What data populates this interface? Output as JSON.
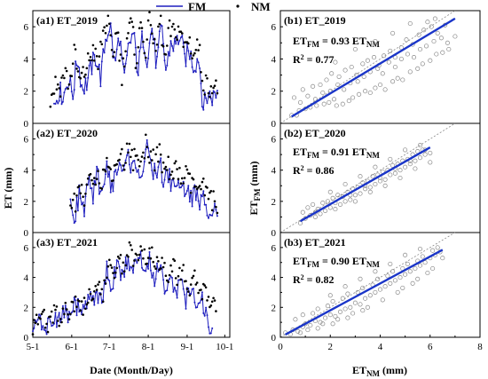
{
  "legend": {
    "fm_label": "FM",
    "nm_label": "NM"
  },
  "colors": {
    "fm_line": "#1f1fbf",
    "nm_dot": "#000000",
    "fit_line": "#1a35c8",
    "scatter_marker": "#8a8a8a",
    "one_to_one": "#888888"
  },
  "left_panels": {
    "y_axis_title": "ET (mm)",
    "x_axis_title": "Date (Month/Day)",
    "x_tick_labels": [
      "5-1",
      "6-1",
      "7-1",
      "8-1",
      "9-1",
      "10-1"
    ],
    "y_tick_labels": [
      "0",
      "2",
      "4",
      "6"
    ]
  },
  "right_panels": {
    "y_axis_title": "ET",
    "y_axis_sub": "FM",
    "y_axis_unit": " (mm)",
    "x_axis_title": "ET",
    "x_axis_sub": "NM",
    "x_axis_unit": " (mm)",
    "x_tick_labels": [
      "0",
      "2",
      "4",
      "6",
      "8"
    ],
    "y_tick_labels": [
      "0",
      "2",
      "4",
      "6"
    ]
  },
  "chart_data": [
    {
      "type": "line",
      "title": "(a1) ET_2019",
      "xlabel": "Date (Month/Day)",
      "ylabel": "ET (mm)",
      "ylim": [
        0,
        7
      ],
      "series": [
        {
          "name": "FM",
          "style": "line",
          "start_date": "05-18",
          "end_date": "09-25",
          "anchors": [
            1.2,
            2.0,
            1.7,
            2.8,
            1.8,
            4.2,
            2.2,
            2.5,
            3.5,
            4.2,
            2.8,
            5.2,
            6.2,
            3.5,
            5.5,
            2.5,
            4.8,
            5.6,
            3.2,
            5.5,
            4.0,
            6.0,
            3.5,
            6.0,
            3.2,
            5.0,
            4.8,
            5.5,
            4.0,
            4.5,
            3.5,
            4.2,
            1.0,
            1.8,
            1.6,
            2.0
          ]
        },
        {
          "name": "NM",
          "style": "dots",
          "start_date": "05-15",
          "end_date": "09-25",
          "anchors": [
            1.5,
            2.5,
            2.2,
            3.3,
            2.3,
            4.5,
            2.6,
            3.0,
            3.9,
            4.6,
            3.5,
            5.6,
            6.4,
            4.0,
            6.0,
            3.0,
            5.3,
            6.2,
            3.8,
            6.2,
            4.5,
            6.8,
            4.1,
            6.6,
            3.8,
            5.8,
            5.5,
            6.0,
            4.7,
            5.3,
            4.2,
            5.0,
            2.6,
            2.3,
            2.4,
            2.0
          ]
        }
      ]
    },
    {
      "type": "line",
      "title": "(a2) ET_2020",
      "xlabel": "Date (Month/Day)",
      "ylabel": "ET (mm)",
      "ylim": [
        0,
        7
      ],
      "series": [
        {
          "name": "FM",
          "style": "line",
          "start_date": "05-31",
          "end_date": "09-25",
          "anchors": [
            1.8,
            1.2,
            2.5,
            1.5,
            3.2,
            2.0,
            3.8,
            2.5,
            4.2,
            3.0,
            3.5,
            4.5,
            3.8,
            5.0,
            4.0,
            4.5,
            3.5,
            5.5,
            4.2,
            3.8,
            4.5,
            3.2,
            3.8,
            2.8,
            3.5,
            2.5,
            3.0,
            2.2,
            2.5,
            1.8,
            2.2,
            1.5,
            1.8,
            1.5
          ]
        },
        {
          "name": "NM",
          "style": "dots",
          "start_date": "05-31",
          "end_date": "09-25",
          "anchors": [
            2.2,
            1.8,
            3.0,
            2.2,
            3.6,
            2.6,
            4.2,
            3.2,
            4.6,
            3.7,
            4.1,
            5.1,
            4.5,
            5.6,
            4.6,
            5.1,
            4.2,
            6.0,
            4.9,
            4.6,
            5.0,
            3.9,
            4.3,
            3.6,
            4.1,
            3.3,
            3.7,
            3.0,
            3.1,
            2.6,
            2.8,
            2.2,
            2.1,
            1.8
          ]
        }
      ]
    },
    {
      "type": "line",
      "title": "(a3) ET_2021",
      "xlabel": "Date (Month/Day)",
      "ylabel": "ET (mm)",
      "ylim": [
        0,
        7
      ],
      "series": [
        {
          "name": "FM",
          "style": "line",
          "start_date": "05-01",
          "end_date": "09-21",
          "anchors": [
            0.3,
            0.8,
            1.2,
            0.6,
            1.5,
            1.0,
            1.8,
            1.3,
            2.2,
            1.6,
            2.0,
            2.5,
            3.0,
            2.2,
            4.5,
            3.2,
            5.0,
            3.8,
            5.5,
            4.2,
            5.8,
            4.5,
            5.2,
            4.0,
            4.8,
            3.5,
            4.2,
            3.0,
            3.8,
            2.5,
            3.2,
            2.0,
            2.5,
            1.2,
            0.5
          ]
        },
        {
          "name": "NM",
          "style": "dots",
          "start_date": "05-01",
          "end_date": "09-24",
          "anchors": [
            0.5,
            1.0,
            1.5,
            0.9,
            1.8,
            1.3,
            2.1,
            1.7,
            2.6,
            2.0,
            2.5,
            3.0,
            3.6,
            2.8,
            5.0,
            3.8,
            5.5,
            4.4,
            6.0,
            4.9,
            6.2,
            5.2,
            5.8,
            4.7,
            5.4,
            4.2,
            4.9,
            3.8,
            4.5,
            3.3,
            4.0,
            2.9,
            3.2,
            2.2,
            2.0
          ]
        }
      ]
    },
    {
      "type": "scatter",
      "title": "(b1) ET_2019",
      "equation": {
        "lhs": "ET",
        "lhs_sub": "FM",
        "mid": " = 0.93 ET",
        "rhs_sub": "NM"
      },
      "r2": {
        "label": "R",
        "sup": "2",
        "value": " = 0.77"
      },
      "slope": 0.93,
      "xlim": [
        0,
        8
      ],
      "ylim": [
        0,
        7
      ],
      "points": [
        [
          0.45,
          0.5
        ],
        [
          0.65,
          0.5
        ],
        [
          0.8,
          1.3
        ],
        [
          1.0,
          0.9
        ],
        [
          1.2,
          1.0
        ],
        [
          1.45,
          1.1
        ],
        [
          1.75,
          1.2
        ],
        [
          1.95,
          1.3
        ],
        [
          2.15,
          1.5
        ],
        [
          2.25,
          1.1
        ],
        [
          2.5,
          1.2
        ],
        [
          2.75,
          1.4
        ],
        [
          2.9,
          1.6
        ],
        [
          3.15,
          1.8
        ],
        [
          3.4,
          2.0
        ],
        [
          3.6,
          1.9
        ],
        [
          3.8,
          2.2
        ],
        [
          4.0,
          2.4
        ],
        [
          4.2,
          2.1
        ],
        [
          4.5,
          2.6
        ],
        [
          4.7,
          2.8
        ],
        [
          4.9,
          2.7
        ],
        [
          5.2,
          3.2
        ],
        [
          5.5,
          3.4
        ],
        [
          5.7,
          3.7
        ],
        [
          6.0,
          3.9
        ],
        [
          6.25,
          4.3
        ],
        [
          6.5,
          4.4
        ],
        [
          6.75,
          4.6
        ],
        [
          7.0,
          5.4
        ],
        [
          0.55,
          1.6
        ],
        [
          0.9,
          2.1
        ],
        [
          1.3,
          2.3
        ],
        [
          1.6,
          2.4
        ],
        [
          1.85,
          2.7
        ],
        [
          2.05,
          3.1
        ],
        [
          2.35,
          2.9
        ],
        [
          2.6,
          3.3
        ],
        [
          2.85,
          3.5
        ],
        [
          3.05,
          3.0
        ],
        [
          3.3,
          3.7
        ],
        [
          3.5,
          3.9
        ],
        [
          3.75,
          4.1
        ],
        [
          3.95,
          3.6
        ],
        [
          4.15,
          4.2
        ],
        [
          4.4,
          4.5
        ],
        [
          4.6,
          4.1
        ],
        [
          4.85,
          4.7
        ],
        [
          5.05,
          5.2
        ],
        [
          5.3,
          4.9
        ],
        [
          5.55,
          5.5
        ],
        [
          5.75,
          5.8
        ],
        [
          6.05,
          6.0
        ],
        [
          6.3,
          5.6
        ],
        [
          6.6,
          6.1
        ],
        [
          0.75,
          0.8
        ],
        [
          1.1,
          1.7
        ],
        [
          1.4,
          1.5
        ],
        [
          1.7,
          1.9
        ],
        [
          2.0,
          2.0
        ],
        [
          2.3,
          2.4
        ],
        [
          2.55,
          2.1
        ],
        [
          2.8,
          2.5
        ],
        [
          3.1,
          2.6
        ],
        [
          3.35,
          2.9
        ],
        [
          3.6,
          3.2
        ],
        [
          3.9,
          3.4
        ],
        [
          4.1,
          3.1
        ],
        [
          4.35,
          3.8
        ],
        [
          4.6,
          3.5
        ],
        [
          4.85,
          4.0
        ],
        [
          5.1,
          4.3
        ],
        [
          5.35,
          4.1
        ],
        [
          5.6,
          4.6
        ],
        [
          5.85,
          4.8
        ],
        [
          6.15,
          5.1
        ],
        [
          6.45,
          5.3
        ],
        [
          6.7,
          5.0
        ],
        [
          2.2,
          3.8
        ],
        [
          3.0,
          4.6
        ],
        [
          3.8,
          5.1
        ],
        [
          4.5,
          5.6
        ],
        [
          5.2,
          6.2
        ],
        [
          5.9,
          6.3
        ],
        [
          6.2,
          6.5
        ]
      ]
    },
    {
      "type": "scatter",
      "title": "(b2) ET_2020",
      "equation": {
        "lhs": "ET",
        "lhs_sub": "FM",
        "mid": " = 0.91 ET",
        "rhs_sub": "NM"
      },
      "r2": {
        "label": "R",
        "sup": "2",
        "value": " = 0.86"
      },
      "slope": 0.91,
      "xlim": [
        0,
        8
      ],
      "ylim": [
        0,
        7
      ],
      "points": [
        [
          0.8,
          0.6
        ],
        [
          1.0,
          0.9
        ],
        [
          1.2,
          1.1
        ],
        [
          1.4,
          1.0
        ],
        [
          1.6,
          1.2
        ],
        [
          1.8,
          1.4
        ],
        [
          2.0,
          1.6
        ],
        [
          2.2,
          1.5
        ],
        [
          2.4,
          1.8
        ],
        [
          2.6,
          2.0
        ],
        [
          2.8,
          2.1
        ],
        [
          3.0,
          2.4
        ],
        [
          3.2,
          2.5
        ],
        [
          3.4,
          2.8
        ],
        [
          3.6,
          2.9
        ],
        [
          3.8,
          3.1
        ],
        [
          4.0,
          3.3
        ],
        [
          4.2,
          3.4
        ],
        [
          4.4,
          3.7
        ],
        [
          4.6,
          3.8
        ],
        [
          4.8,
          4.0
        ],
        [
          5.0,
          4.2
        ],
        [
          5.2,
          4.4
        ],
        [
          5.4,
          4.6
        ],
        [
          5.6,
          4.8
        ],
        [
          5.8,
          5.0
        ],
        [
          6.0,
          5.1
        ],
        [
          1.1,
          1.6
        ],
        [
          1.3,
          1.8
        ],
        [
          1.5,
          1.5
        ],
        [
          1.7,
          1.9
        ],
        [
          1.9,
          2.0
        ],
        [
          2.1,
          2.2
        ],
        [
          2.3,
          2.4
        ],
        [
          2.5,
          2.3
        ],
        [
          2.7,
          2.6
        ],
        [
          2.9,
          2.8
        ],
        [
          3.1,
          2.9
        ],
        [
          3.3,
          3.2
        ],
        [
          3.5,
          3.3
        ],
        [
          3.7,
          3.6
        ],
        [
          3.9,
          3.7
        ],
        [
          4.1,
          3.9
        ],
        [
          4.3,
          4.0
        ],
        [
          4.5,
          4.3
        ],
        [
          4.7,
          4.4
        ],
        [
          4.9,
          4.6
        ],
        [
          5.1,
          4.7
        ],
        [
          5.3,
          5.0
        ],
        [
          5.5,
          5.2
        ],
        [
          5.7,
          5.3
        ],
        [
          2.0,
          2.6
        ],
        [
          2.6,
          3.1
        ],
        [
          3.2,
          3.6
        ],
        [
          3.8,
          4.2
        ],
        [
          4.4,
          4.7
        ],
        [
          5.0,
          5.3
        ],
        [
          5.6,
          5.6
        ],
        [
          3.0,
          2.0
        ],
        [
          3.6,
          2.6
        ],
        [
          4.2,
          3.0
        ],
        [
          4.8,
          3.5
        ],
        [
          5.4,
          4.1
        ],
        [
          6.0,
          4.5
        ],
        [
          0.9,
          1.3
        ],
        [
          1.4,
          1.3
        ],
        [
          2.2,
          1.9
        ],
        [
          2.8,
          2.4
        ],
        [
          3.4,
          3.0
        ],
        [
          4.0,
          3.5
        ],
        [
          4.6,
          4.1
        ],
        [
          5.2,
          4.6
        ],
        [
          5.8,
          5.3
        ]
      ]
    },
    {
      "type": "scatter",
      "title": "(b3) ET_2021",
      "equation": {
        "lhs": "ET",
        "lhs_sub": "FM",
        "mid": " = 0.90 ET",
        "rhs_sub": "NM"
      },
      "r2": {
        "label": "R",
        "sup": "2",
        "value": " = 0.82"
      },
      "slope": 0.9,
      "xlim": [
        0,
        8
      ],
      "ylim": [
        0,
        7
      ],
      "points": [
        [
          0.2,
          0.3
        ],
        [
          0.4,
          0.2
        ],
        [
          0.5,
          0.5
        ],
        [
          0.7,
          0.4
        ],
        [
          0.9,
          0.7
        ],
        [
          1.0,
          0.9
        ],
        [
          1.2,
          0.8
        ],
        [
          1.4,
          1.1
        ],
        [
          1.6,
          1.0
        ],
        [
          1.8,
          1.3
        ],
        [
          2.0,
          1.5
        ],
        [
          2.2,
          1.4
        ],
        [
          2.4,
          1.7
        ],
        [
          2.6,
          1.9
        ],
        [
          2.8,
          2.0
        ],
        [
          3.0,
          2.3
        ],
        [
          3.2,
          2.2
        ],
        [
          3.4,
          2.6
        ],
        [
          3.6,
          2.8
        ],
        [
          3.8,
          3.0
        ],
        [
          4.0,
          3.2
        ],
        [
          4.2,
          3.4
        ],
        [
          4.4,
          3.6
        ],
        [
          4.6,
          3.8
        ],
        [
          4.8,
          4.0
        ],
        [
          5.0,
          4.2
        ],
        [
          5.2,
          4.4
        ],
        [
          5.4,
          4.6
        ],
        [
          5.6,
          4.8
        ],
        [
          5.8,
          5.0
        ],
        [
          6.0,
          5.3
        ],
        [
          6.2,
          5.5
        ],
        [
          6.4,
          5.7
        ],
        [
          0.6,
          1.2
        ],
        [
          0.9,
          1.5
        ],
        [
          1.3,
          1.6
        ],
        [
          1.5,
          1.9
        ],
        [
          1.9,
          2.1
        ],
        [
          2.1,
          2.4
        ],
        [
          2.5,
          2.6
        ],
        [
          2.7,
          2.9
        ],
        [
          3.1,
          3.0
        ],
        [
          3.3,
          3.3
        ],
        [
          3.7,
          3.5
        ],
        [
          3.9,
          3.9
        ],
        [
          4.3,
          4.1
        ],
        [
          4.5,
          4.4
        ],
        [
          4.9,
          4.6
        ],
        [
          5.1,
          4.9
        ],
        [
          5.5,
          5.1
        ],
        [
          5.7,
          5.4
        ],
        [
          6.1,
          5.8
        ],
        [
          6.3,
          6.0
        ],
        [
          1.1,
          0.5
        ],
        [
          1.7,
          0.9
        ],
        [
          2.3,
          1.2
        ],
        [
          2.9,
          1.6
        ],
        [
          3.5,
          2.0
        ],
        [
          4.1,
          2.5
        ],
        [
          4.7,
          3.0
        ],
        [
          5.3,
          3.6
        ],
        [
          5.9,
          4.3
        ],
        [
          2.0,
          2.8
        ],
        [
          2.6,
          3.4
        ],
        [
          3.2,
          3.9
        ],
        [
          3.8,
          4.4
        ],
        [
          4.4,
          4.9
        ],
        [
          5.0,
          5.5
        ],
        [
          5.6,
          5.9
        ],
        [
          0.8,
          0.3
        ],
        [
          1.5,
          0.6
        ],
        [
          2.1,
          0.9
        ],
        [
          2.7,
          1.3
        ],
        [
          3.3,
          1.8
        ],
        [
          4.9,
          3.3
        ],
        [
          5.5,
          3.9
        ],
        [
          6.1,
          4.6
        ],
        [
          6.5,
          5.3
        ]
      ]
    }
  ]
}
